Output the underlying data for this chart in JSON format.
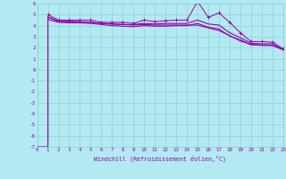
{
  "xlabel": "Windchill (Refroidissement éolien,°C)",
  "background_color": "#b2eaf2",
  "grid_color": "#94cdd6",
  "line_color": "#9900aa",
  "x_min": 0,
  "x_max": 23,
  "y_min": -7,
  "y_max": 6,
  "line1_x": [
    0,
    1,
    1,
    2,
    3,
    4,
    5,
    6,
    7,
    8,
    9,
    10,
    11,
    12,
    13,
    14,
    15,
    16,
    17,
    18,
    19,
    20,
    21,
    22,
    23
  ],
  "line1_y": [
    -7,
    -7,
    4.8,
    4.4,
    4.4,
    4.35,
    4.3,
    4.2,
    4.15,
    4.1,
    4.05,
    4.1,
    4.05,
    4.05,
    4.05,
    4.05,
    4.05,
    3.8,
    3.55,
    3.1,
    2.6,
    2.3,
    2.2,
    2.2,
    1.8
  ],
  "line2_x": [
    1,
    2,
    3,
    4,
    5,
    6,
    7,
    8,
    9,
    10,
    11,
    12,
    13,
    14,
    15,
    16,
    17,
    18,
    19,
    20,
    21,
    22,
    23
  ],
  "line2_y": [
    5.0,
    4.5,
    4.5,
    4.5,
    4.5,
    4.3,
    4.3,
    4.3,
    4.2,
    4.5,
    4.35,
    4.45,
    4.5,
    4.5,
    6.2,
    4.75,
    5.15,
    4.3,
    3.35,
    2.55,
    2.55,
    2.5,
    1.9
  ],
  "line3_x": [
    1,
    2,
    3,
    4,
    5,
    6,
    7,
    8,
    9,
    10,
    11,
    12,
    13,
    14,
    15,
    16,
    17,
    18,
    19,
    20,
    21,
    22,
    23
  ],
  "line3_y": [
    4.75,
    4.4,
    4.35,
    4.35,
    4.3,
    4.2,
    4.15,
    4.1,
    4.1,
    4.2,
    4.15,
    4.2,
    4.2,
    4.2,
    4.5,
    4.15,
    4.05,
    3.35,
    2.9,
    2.4,
    2.35,
    2.35,
    1.85
  ],
  "line4_x": [
    1,
    2,
    3,
    4,
    5,
    6,
    7,
    8,
    9,
    10,
    11,
    12,
    13,
    14,
    15,
    16,
    17,
    18,
    19,
    20,
    21,
    22,
    23
  ],
  "line4_y": [
    4.55,
    4.3,
    4.25,
    4.25,
    4.2,
    4.1,
    4.0,
    3.95,
    3.9,
    4.0,
    3.95,
    3.95,
    4.0,
    4.0,
    4.2,
    3.85,
    3.7,
    3.05,
    2.7,
    2.25,
    2.25,
    2.2,
    1.85
  ]
}
